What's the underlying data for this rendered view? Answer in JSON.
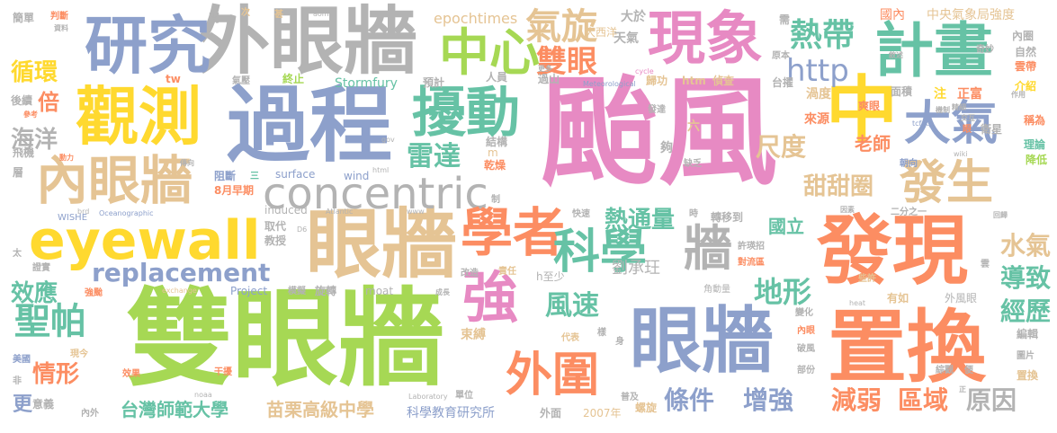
{
  "words": {
    "w01": "颱風",
    "w02": "雙眼牆",
    "w03": "過程",
    "w04": "外眼牆",
    "w05": "置換",
    "w06": "眼牆",
    "w07": "眼牆",
    "w08": "發現",
    "w09": "觀測",
    "w10": "研究",
    "w11": "中",
    "w12": "計畫",
    "w13": "現象",
    "w14": "擾動",
    "w15": "中心",
    "w16": "內眼牆",
    "w17": "大氣",
    "w18": "eyewall",
    "w19": "concentric",
    "w20": "學者",
    "w21": "科學",
    "w22": "牆",
    "w23": "強",
    "w24": "外圍",
    "w25": "發生",
    "w26": "replacement",
    "w27": "氣旋",
    "w28": "雙眼",
    "w29": "熱帶",
    "w30": "http",
    "w31": "聖帕",
    "w32": "海洋",
    "w33": "雷達",
    "w34": "熱通量",
    "w35": "風速",
    "w36": "地形",
    "w37": "條件",
    "w38": "增強",
    "w39": "減弱",
    "w40": "區域",
    "w41": "原因",
    "w42": "尺度",
    "w43": "甜甜圈",
    "w44": "水氣",
    "w45": "導致",
    "w46": "經歷",
    "w47": "效應",
    "w48": "情形",
    "w49": "循環",
    "w50": "倍",
    "w51": "台灣師範大學",
    "w52": "苗栗高級中學",
    "w53": "科學教育研究所",
    "w54": "國立",
    "w55": "劉承玨",
    "w56": "老師",
    "w57": "epochtimes",
    "w58": "大西洋",
    "w59": "天氣",
    "w60": "大於",
    "w61": "中央氣象局強度",
    "w62": "國內",
    "w63": "內圈",
    "w64": "自然",
    "w65": "奇妙",
    "w66": "雲帶",
    "w67": "簡單",
    "w68": "判斷",
    "w69": "資料",
    "w70": "間",
    "w71": "次",
    "w72": "甚",
    "w73": "aomi",
    "w74": "Stormfury",
    "w75": "更多",
    "w76": "過山",
    "w77": "人員",
    "w78": "預計",
    "w79": "tw",
    "w80": "氣壓",
    "w81": "終止",
    "w82": "歸功",
    "w83": "htm",
    "w84": "偵查",
    "w85": "台擢",
    "w86": "渦度",
    "w87": "面積",
    "w88": "注",
    "w89": "正富",
    "w90": "介紹",
    "w91": "衛星",
    "w92": "機制",
    "w93": "稱為",
    "w94": "理論",
    "w95": "降低",
    "w96": "朝向",
    "w97": "來源",
    "w98": "後續",
    "w99": "飛機",
    "w100": "動力",
    "w101": "層",
    "w102": "阻斷",
    "w103": "三",
    "w104": "surface",
    "w105": "wind",
    "w106": "html",
    "w107": "8月",
    "w108": "早期",
    "w109": "WISHE",
    "w110": "Oceanographic",
    "w111": "induced",
    "w112": "Atlantic",
    "w113": "取代",
    "w114": "教授",
    "w115": "快速",
    "w116": "時",
    "w117": "轉移到",
    "w118": "許瑛招",
    "w119": "對流區",
    "w120": "因素",
    "w121": "二分之一",
    "w122": "回歸",
    "w123": "結構",
    "w124": "乾燥",
    "w125": "缺乏",
    "w126": "夠",
    "w127": "六",
    "w128": "發達",
    "w129": "太",
    "w130": "證實",
    "w131": "強颱",
    "w132": "美國",
    "w133": "現今",
    "w134": "效果",
    "w135": "干擾",
    "w136": "意義",
    "w137": "內外",
    "w138": "exchange",
    "w139": "Project",
    "w140": "模擬",
    "w141": "旋轉",
    "w142": "moat",
    "w143": "成長",
    "w144": "改造",
    "w145": "責任",
    "w146": "束縛",
    "w147": "代表",
    "w148": "樣",
    "w149": "身",
    "w150": "角動量",
    "w151": "些許",
    "w152": "有如",
    "w153": "外風眼",
    "w154": "變化",
    "w155": "heat",
    "w156": "內眼",
    "w157": "破風",
    "w158": "部份",
    "w159": "綜觀",
    "w160": "編輯",
    "w161": "圖片",
    "w162": "置換",
    "w163": "便",
    "w164": "正",
    "w165": "外面",
    "w166": "2007年",
    "w167": "螺旋",
    "w168": "普及",
    "w169": "單位",
    "w170": "Laboratory",
    "w171": "noaa",
    "w172": "非",
    "w173": "h至少",
    "w174": "需",
    "w175": "原本",
    "w176": "cycle",
    "w177": "Meteorological",
    "w178": "gov",
    "w179": "傳向",
    "w180": "tcfaq",
    "w181": "眼",
    "w182": "wiki",
    "w183": "爽眼",
    "w184": "作用",
    "w185": "精細",
    "w186": "交互",
    "w187": "敘述",
    "w188": "參考",
    "w189": "制",
    "w190": "m",
    "w191": "brd",
    "w192": "www",
    "w193": "D6",
    "w194": "雲",
    "w195": "更"
  }
}
